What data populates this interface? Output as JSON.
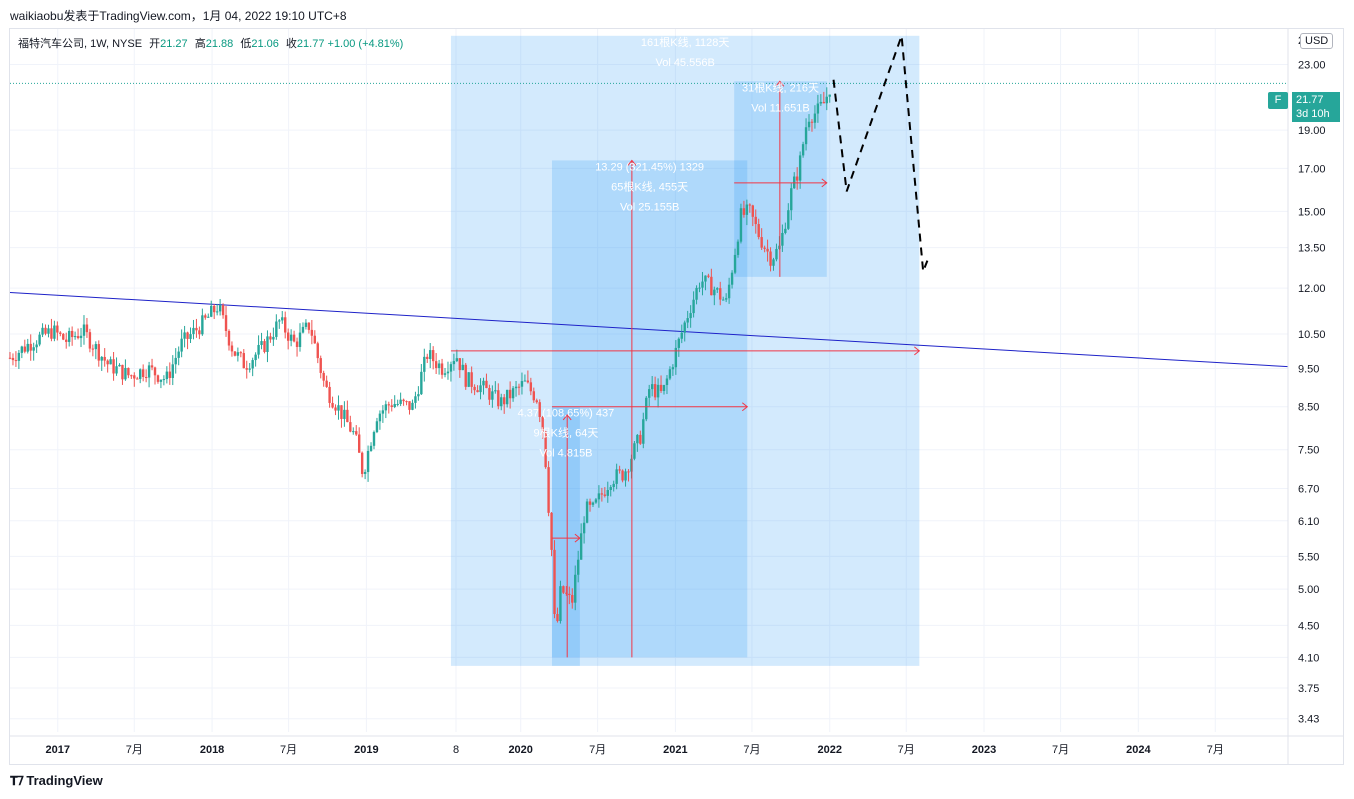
{
  "header": {
    "text": "waikiaobu发表于TradingView.com，1月 04, 2022 19:10 UTC+8"
  },
  "legend": {
    "symbol": "福特汽车公司, 1W, NYSE",
    "open_label": "开",
    "open": "21.27",
    "high_label": "高",
    "high": "21.88",
    "low_label": "低",
    "low": "21.06",
    "close_label": "收",
    "close": "21.77",
    "change": "+1.00 (+4.81%)"
  },
  "axis": {
    "currency": "USD",
    "price_flag": "F",
    "last_price": "21.77",
    "countdown": "3d 10h",
    "top_partial": "2"
  },
  "footer": {
    "logo_text": "TradingView",
    "logo_icon": "tradingview-logo-icon"
  },
  "colors": {
    "up": "#26a69a",
    "down": "#ef5350",
    "trend": "#1e22c8",
    "range": "#2196f3",
    "measure": "#f23645"
  },
  "chart_data": {
    "type": "candlestick",
    "interval": "1W",
    "symbol": "F",
    "y_scale": "log",
    "ylim": [
      3.3,
      25.5
    ],
    "x_range": [
      "2016-09-10",
      "2024-12-20"
    ],
    "y_ticks": [
      "23.00",
      "19.00",
      "17.00",
      "15.00",
      "13.50",
      "12.00",
      "10.50",
      "9.50",
      "8.50",
      "7.50",
      "6.70",
      "6.10",
      "5.50",
      "5.00",
      "4.50",
      "4.10",
      "3.75",
      "3.43"
    ],
    "x_ticks": [
      {
        "date": "2017-01-01",
        "label": "2017"
      },
      {
        "date": "2017-07-01",
        "label": "7月"
      },
      {
        "date": "2018-01-01",
        "label": "2018"
      },
      {
        "date": "2018-07-01",
        "label": "7月"
      },
      {
        "date": "2019-01-01",
        "label": "2019"
      },
      {
        "date": "2019-08-01",
        "label": "8"
      },
      {
        "date": "2020-01-01",
        "label": "2020"
      },
      {
        "date": "2020-07-01",
        "label": "7月"
      },
      {
        "date": "2021-01-01",
        "label": "2021"
      },
      {
        "date": "2021-07-01",
        "label": "7月"
      },
      {
        "date": "2022-01-01",
        "label": "2022"
      },
      {
        "date": "2022-07-01",
        "label": "7月"
      },
      {
        "date": "2023-01-01",
        "label": "2023"
      },
      {
        "date": "2023-07-01",
        "label": "7月"
      },
      {
        "date": "2024-01-01",
        "label": "2024"
      },
      {
        "date": "2024-07-01",
        "label": "7月"
      }
    ],
    "close_path": [
      [
        "2016-09-10",
        9.8
      ],
      [
        "2016-11-05",
        10.3
      ],
      [
        "2016-12-20",
        10.6
      ],
      [
        "2017-01-20",
        10.3
      ],
      [
        "2017-03-01",
        10.6
      ],
      [
        "2017-05-01",
        9.6
      ],
      [
        "2017-06-20",
        9.3
      ],
      [
        "2017-08-01",
        9.5
      ],
      [
        "2017-09-15",
        9.2
      ],
      [
        "2017-10-20",
        10.2
      ],
      [
        "2017-12-15",
        10.9
      ],
      [
        "2018-01-15",
        11.4
      ],
      [
        "2018-02-20",
        10.0
      ],
      [
        "2018-03-20",
        9.6
      ],
      [
        "2018-05-01",
        10.1
      ],
      [
        "2018-06-10",
        10.9
      ],
      [
        "2018-07-15",
        10.2
      ],
      [
        "2018-08-20",
        10.8
      ],
      [
        "2018-09-25",
        9.0
      ],
      [
        "2018-10-25",
        8.5
      ],
      [
        "2018-12-05",
        7.8
      ],
      [
        "2018-12-24",
        7.0
      ],
      [
        "2019-01-25",
        8.3
      ],
      [
        "2019-03-01",
        8.6
      ],
      [
        "2019-04-20",
        8.5
      ],
      [
        "2019-05-25",
        9.9
      ],
      [
        "2019-07-01",
        9.5
      ],
      [
        "2019-08-01",
        9.9
      ],
      [
        "2019-08-25",
        9.2
      ],
      [
        "2019-10-01",
        9.0
      ],
      [
        "2019-11-15",
        8.6
      ],
      [
        "2020-01-10",
        9.1
      ],
      [
        "2020-02-10",
        8.7
      ],
      [
        "2020-02-25",
        7.8
      ],
      [
        "2020-03-15",
        5.5
      ],
      [
        "2020-03-23",
        4.3
      ],
      [
        "2020-04-05",
        5.0
      ],
      [
        "2020-05-01",
        4.8
      ],
      [
        "2020-06-01",
        6.3
      ],
      [
        "2020-06-20",
        6.3
      ],
      [
        "2020-08-01",
        6.9
      ],
      [
        "2020-09-01",
        7.0
      ],
      [
        "2020-10-10",
        7.8
      ],
      [
        "2020-11-01",
        9.0
      ],
      [
        "2020-12-01",
        8.8
      ],
      [
        "2021-01-10",
        10.3
      ],
      [
        "2021-02-01",
        11.2
      ],
      [
        "2021-03-01",
        12.3
      ],
      [
        "2021-04-01",
        12.0
      ],
      [
        "2021-05-01",
        11.5
      ],
      [
        "2021-06-05",
        14.8
      ],
      [
        "2021-06-25",
        15.0
      ],
      [
        "2021-07-20",
        13.9
      ],
      [
        "2021-08-15",
        13.1
      ],
      [
        "2021-09-05",
        13.5
      ],
      [
        "2021-10-01",
        15.8
      ],
      [
        "2021-10-20",
        17.0
      ],
      [
        "2021-11-10",
        19.8
      ],
      [
        "2021-12-01",
        20.0
      ],
      [
        "2021-12-20",
        20.6
      ],
      [
        "2022-01-04",
        21.77
      ]
    ],
    "trend_line": [
      [
        "2016-09-10",
        11.85
      ],
      [
        "2024-12-20",
        9.55
      ]
    ],
    "forecast_path": [
      [
        "2022-01-10",
        22.0
      ],
      [
        "2022-02-10",
        15.9
      ],
      [
        "2022-06-20",
        25.0
      ],
      [
        "2022-08-10",
        12.6
      ],
      [
        "2022-08-20",
        13.0
      ]
    ],
    "last_price_line": 21.77,
    "date_ranges": [
      {
        "lines": [
          "161根K线, 1128天",
          "Vol 45.556B"
        ],
        "from": "2019-07-20",
        "to": "2022-08-01",
        "low": 4.0,
        "high": 25.0
      },
      {
        "lines": [
          "13.29 (321.45%) 1329",
          "65根K线, 455天",
          "Vol 25.155B"
        ],
        "from": "2020-03-15",
        "to": "2021-06-20",
        "low": 4.1,
        "high": 17.4
      },
      {
        "lines": [
          "4.37 (108.65%) 437",
          "9根K线, 64天",
          "Vol 4.815B"
        ],
        "from": "2020-03-15",
        "to": "2020-05-20",
        "low": 4.0,
        "high": 8.5
      },
      {
        "lines": [
          "31根K线, 216天",
          "Vol 11.651B"
        ],
        "from": "2021-05-20",
        "to": "2021-12-25",
        "low": 12.4,
        "high": 21.9
      }
    ]
  }
}
